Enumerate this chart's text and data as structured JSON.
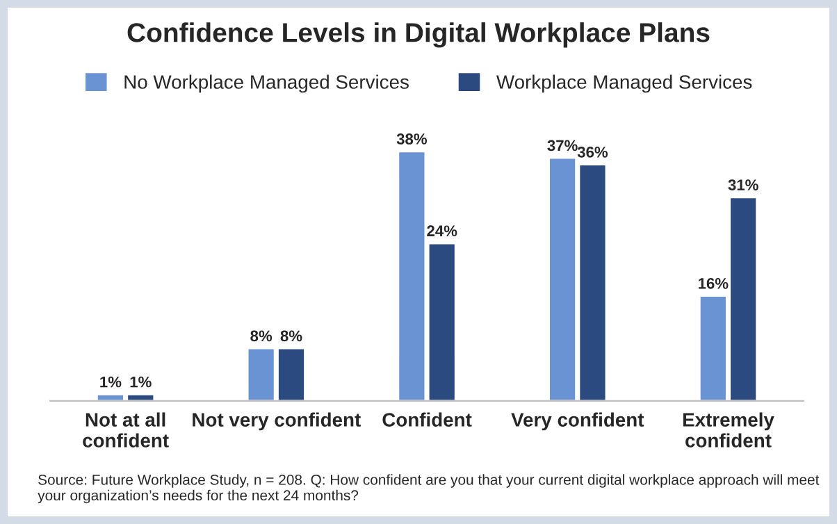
{
  "chart_data": {
    "type": "bar",
    "title": "Confidence Levels in Digital Workplace Plans",
    "categories": [
      "Not at all\nconfident",
      "Not very confident",
      "Confident",
      "Very confident",
      "Extremely\nconfident"
    ],
    "series": [
      {
        "name": "No Workplace Managed Services",
        "color": "#6a93d4",
        "values": [
          1,
          8,
          38,
          37,
          16
        ],
        "value_labels": [
          "1%",
          "8%",
          "38%",
          "37%",
          "16%"
        ]
      },
      {
        "name": "Workplace Managed Services",
        "color": "#2b4a80",
        "values": [
          1,
          8,
          24,
          36,
          31
        ],
        "value_labels": [
          "1%",
          "8%",
          "24%",
          "36%",
          "31%"
        ]
      }
    ],
    "legend": "top",
    "grid": false,
    "annotations": [
      "Source: Future Workplace Study, n = 208. Q: How confident are you that your current digital workplace approach will meet your organization’s needs for the next 24 months?"
    ]
  }
}
